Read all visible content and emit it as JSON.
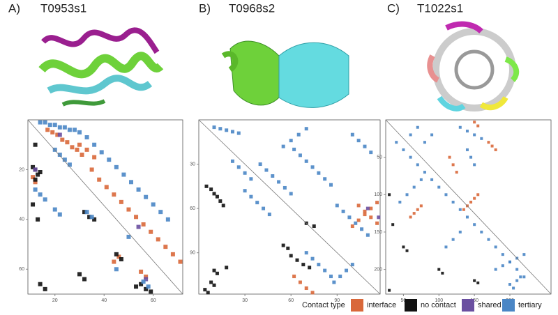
{
  "legend_title": "Contact type",
  "chart_data": [
    {
      "type": "scatter",
      "label": "A)",
      "title": "T0953s1",
      "xlim": [
        9,
        72
      ],
      "ylim": [
        70,
        0
      ],
      "xticks": [
        20,
        40,
        60
      ],
      "yticks": [
        20,
        40,
        60
      ],
      "series": [
        {
          "name": "interface",
          "color": "#d9683a",
          "x": [
            17,
            19,
            21,
            23,
            25,
            27,
            29,
            31,
            35,
            38,
            41,
            44,
            47,
            50,
            53,
            56,
            59,
            62,
            65,
            68,
            71,
            30,
            33,
            36,
            11,
            12,
            44,
            46,
            55,
            57
          ],
          "y": [
            4,
            5,
            6,
            8,
            9,
            11,
            12,
            14,
            20,
            24,
            27,
            30,
            33,
            36,
            39,
            42,
            45,
            48,
            51,
            54,
            57,
            10,
            12,
            15,
            23,
            25,
            57,
            55,
            61,
            63
          ]
        },
        {
          "name": "no contact",
          "color": "#111111",
          "x": [
            11,
            12,
            13,
            14,
            12,
            11,
            32,
            34,
            36,
            55,
            57,
            59,
            53,
            14,
            16,
            30,
            32,
            45,
            47,
            12,
            13
          ],
          "y": [
            19,
            20,
            22,
            21,
            24,
            34,
            37,
            39,
            40,
            66,
            68,
            69,
            67,
            66,
            68,
            62,
            64,
            54,
            56,
            10,
            40
          ]
        },
        {
          "name": "shared",
          "color": "#6a4fa0",
          "x": [
            57,
            54,
            22,
            12
          ],
          "y": [
            64,
            43,
            6,
            20
          ]
        },
        {
          "name": "tertiary",
          "color": "#4a86c5",
          "x": [
            14,
            16,
            18,
            20,
            22,
            24,
            26,
            28,
            30,
            33,
            36,
            39,
            42,
            45,
            48,
            51,
            54,
            57,
            60,
            63,
            66,
            20,
            22,
            24,
            26,
            12,
            14,
            16,
            20,
            22,
            56,
            58,
            33,
            35,
            45,
            50
          ],
          "y": [
            1,
            1,
            2,
            2,
            3,
            3,
            4,
            4,
            5,
            7,
            10,
            13,
            16,
            19,
            22,
            25,
            28,
            31,
            34,
            37,
            40,
            12,
            14,
            16,
            18,
            28,
            30,
            32,
            36,
            38,
            65,
            67,
            37,
            39,
            60,
            47
          ]
        }
      ]
    },
    {
      "type": "scatter",
      "label": "B)",
      "title": "T0968s2",
      "xlim": [
        0,
        118
      ],
      "ylim": [
        118,
        0
      ],
      "xticks": [
        30,
        60,
        90
      ],
      "yticks": [
        30,
        60,
        90
      ],
      "series": [
        {
          "name": "interface",
          "color": "#d9683a",
          "x": [
            100,
            104,
            108,
            112,
            116,
            104,
            108,
            112,
            116,
            62,
            66,
            70,
            74
          ],
          "y": [
            72,
            68,
            64,
            60,
            56,
            58,
            62,
            66,
            70,
            106,
            110,
            114,
            117
          ]
        },
        {
          "name": "no contact",
          "color": "#111111",
          "x": [
            5,
            8,
            10,
            12,
            14,
            16,
            18,
            10,
            12,
            60,
            64,
            68,
            72,
            55,
            58,
            70,
            75,
            8,
            10,
            4,
            6
          ],
          "y": [
            45,
            47,
            50,
            52,
            55,
            58,
            100,
            102,
            104,
            92,
            95,
            98,
            100,
            85,
            87,
            70,
            72,
            110,
            112,
            115,
            117
          ]
        },
        {
          "name": "shared",
          "color": "#6a4fa0",
          "x": [
            117,
            110
          ],
          "y": [
            66,
            60
          ]
        },
        {
          "name": "tertiary",
          "color": "#4a86c5",
          "x": [
            10,
            14,
            18,
            22,
            26,
            40,
            44,
            48,
            52,
            56,
            60,
            62,
            66,
            70,
            74,
            78,
            82,
            86,
            90,
            94,
            98,
            102,
            106,
            110,
            100,
            104,
            108,
            112,
            30,
            34,
            38,
            42,
            46,
            22,
            26,
            30,
            34,
            70,
            74,
            78,
            82,
            86,
            88,
            92,
            96,
            100,
            55,
            60,
            65,
            70
          ],
          "y": [
            5,
            6,
            7,
            8,
            9,
            30,
            34,
            38,
            42,
            46,
            50,
            20,
            24,
            28,
            32,
            36,
            40,
            44,
            58,
            62,
            66,
            70,
            74,
            78,
            10,
            14,
            18,
            22,
            48,
            52,
            56,
            60,
            64,
            28,
            32,
            36,
            40,
            90,
            94,
            98,
            102,
            106,
            110,
            106,
            102,
            98,
            18,
            14,
            10,
            6
          ]
        }
      ]
    },
    {
      "type": "scatter",
      "label": "C)",
      "title": "T1022s1",
      "xlim": [
        25,
        258
      ],
      "ylim": [
        233,
        0
      ],
      "xticks": [
        50,
        100,
        150,
        200
      ],
      "yticks": [
        50,
        100,
        150,
        200
      ],
      "series": [
        {
          "name": "interface",
          "color": "#d9683a",
          "x": [
            135,
            140,
            145,
            150,
            155,
            115,
            120,
            125,
            170,
            175,
            180,
            60,
            65,
            70,
            75,
            150,
            155
          ],
          "y": [
            120,
            115,
            110,
            105,
            100,
            50,
            60,
            70,
            30,
            35,
            40,
            130,
            125,
            120,
            115,
            3,
            8
          ]
        },
        {
          "name": "no contact",
          "color": "#111111",
          "x": [
            30,
            35,
            50,
            55,
            100,
            105,
            150,
            155,
            30
          ],
          "y": [
            100,
            140,
            170,
            175,
            200,
            205,
            215,
            218,
            228
          ]
        },
        {
          "name": "tertiary",
          "color": "#4a86c5",
          "x": [
            40,
            50,
            60,
            70,
            80,
            90,
            100,
            110,
            120,
            130,
            140,
            150,
            160,
            170,
            180,
            190,
            200,
            210,
            220,
            60,
            70,
            80,
            90,
            130,
            140,
            150,
            160,
            140,
            145,
            150,
            180,
            190,
            200,
            210,
            220,
            200,
            205,
            210,
            215,
            45,
            55,
            65,
            75,
            110,
            120,
            130
          ],
          "y": [
            30,
            40,
            50,
            60,
            70,
            80,
            90,
            100,
            110,
            120,
            130,
            140,
            150,
            160,
            170,
            180,
            190,
            200,
            210,
            20,
            10,
            30,
            20,
            10,
            15,
            20,
            25,
            40,
            50,
            60,
            200,
            195,
            190,
            185,
            180,
            220,
            225,
            215,
            210,
            110,
            100,
            90,
            80,
            170,
            160,
            150
          ]
        }
      ]
    }
  ]
}
